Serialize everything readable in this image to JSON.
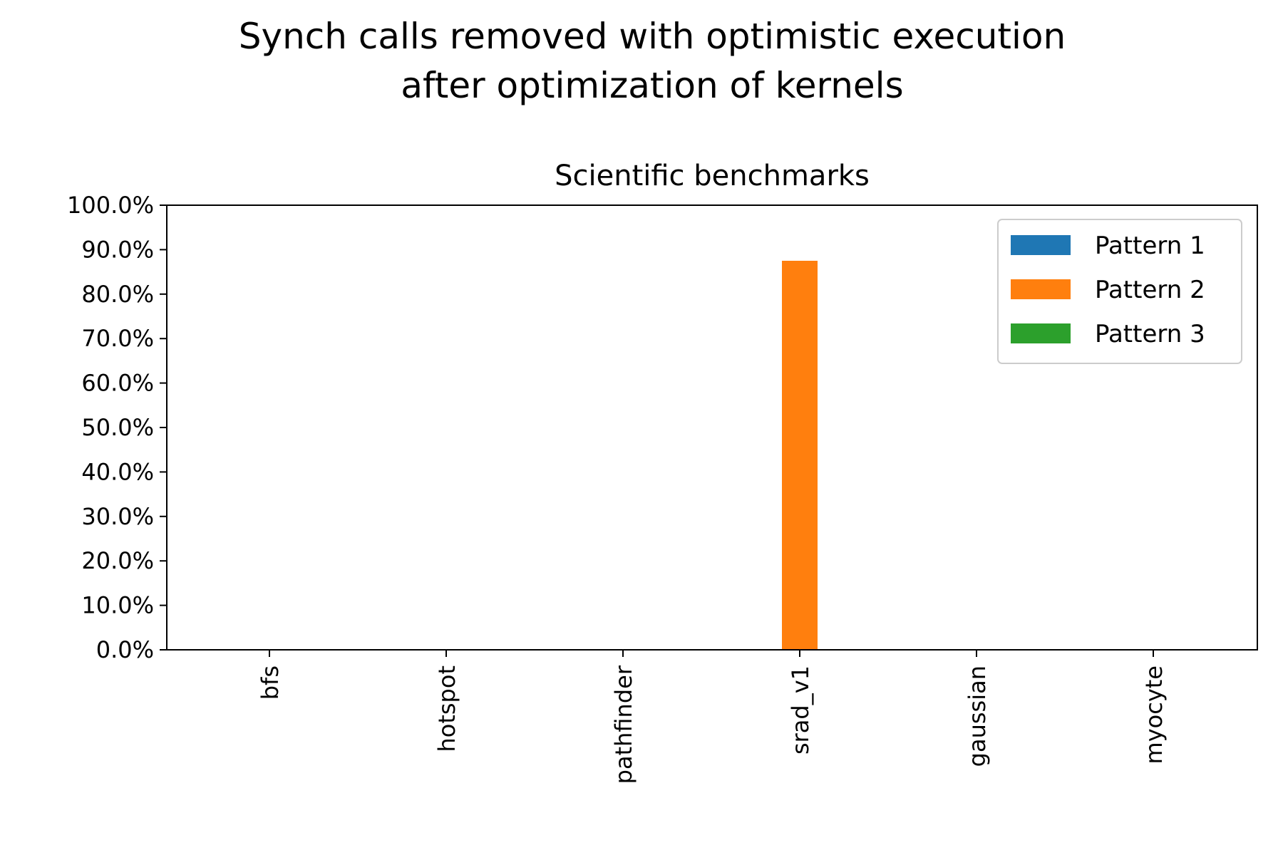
{
  "chart_data": {
    "type": "bar",
    "suptitle_lines": [
      "Synch calls removed with optimistic execution",
      "after optimization of kernels"
    ],
    "title": "Scientific benchmarks",
    "xlabel": "",
    "ylabel": "",
    "categories": [
      "bfs",
      "hotspot",
      "pathfinder",
      "srad_v1",
      "gaussian",
      "myocyte"
    ],
    "series": [
      {
        "name": "Pattern 1",
        "color": "#1f77b4",
        "values": [
          0,
          0,
          0,
          0,
          0,
          0
        ]
      },
      {
        "name": "Pattern 2",
        "color": "#ff7f0e",
        "values": [
          0,
          0,
          0,
          87.5,
          0,
          0
        ]
      },
      {
        "name": "Pattern 3",
        "color": "#2ca02c",
        "values": [
          0,
          0,
          0,
          0,
          0,
          0
        ]
      }
    ],
    "ylim": [
      0,
      100
    ],
    "yticks": [
      0,
      10,
      20,
      30,
      40,
      50,
      60,
      70,
      80,
      90,
      100
    ],
    "ytick_labels": [
      "0.0%",
      "10.0%",
      "20.0%",
      "30.0%",
      "40.0%",
      "50.0%",
      "60.0%",
      "70.0%",
      "80.0%",
      "90.0%",
      "100.0%"
    ],
    "legend_position": "top-right",
    "grid": false
  }
}
